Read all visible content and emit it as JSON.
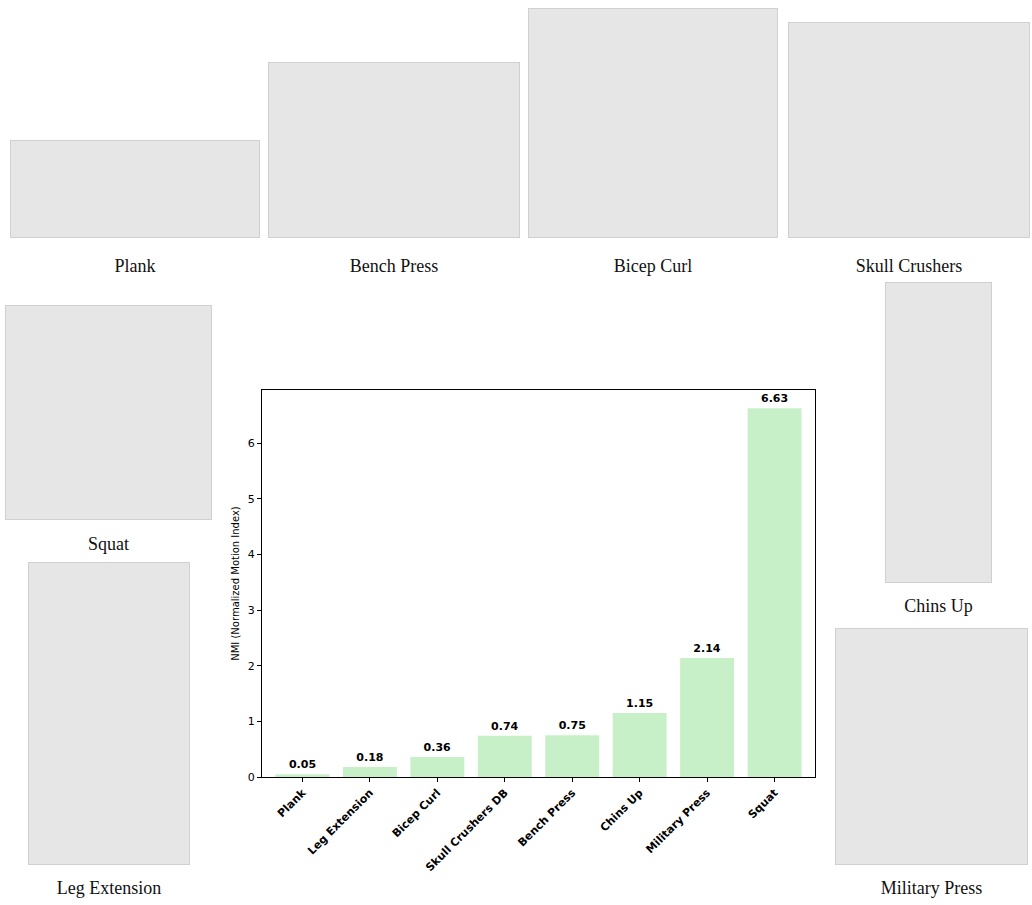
{
  "chart_data": {
    "type": "bar",
    "y_label": "NMI (Normalized Motion Index)",
    "categories": [
      "Plank",
      "Leg Extension",
      "Bicep Curl",
      "Skull Crushers DB",
      "Bench Press",
      "Chins Up",
      "Military Press",
      "Squat"
    ],
    "values": [
      0.05,
      0.18,
      0.36,
      0.74,
      0.75,
      1.15,
      2.14,
      6.63
    ],
    "color": "#c8f0c8",
    "ylim": [
      0,
      6.96
    ],
    "yticks": [
      0,
      1,
      2,
      3,
      4,
      5,
      6
    ],
    "data_labels": true,
    "grid": false
  },
  "photo_captions": [
    "Plank",
    "Bench Press",
    "Bicep Curl",
    "Skull Crushers",
    "Squat",
    "Chins Up",
    "Leg Extension",
    "Military Press"
  ]
}
